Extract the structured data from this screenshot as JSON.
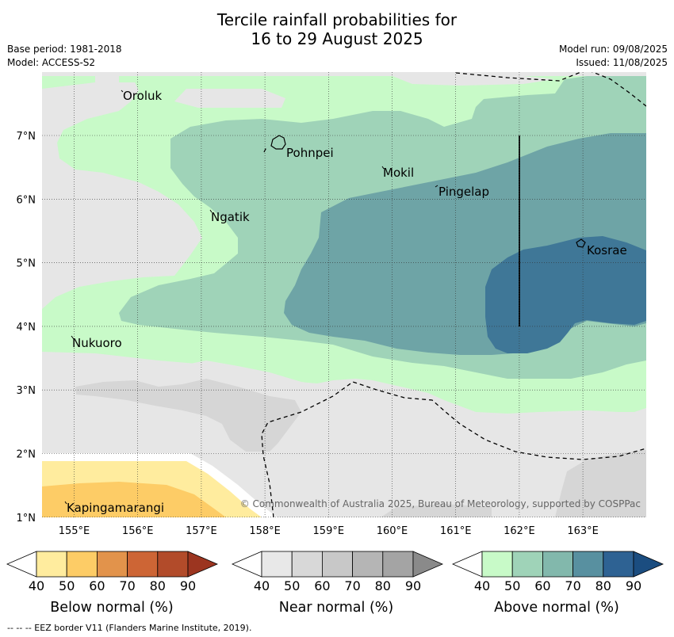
{
  "title_line1": "Tercile rainfall probabilities for",
  "title_line2": "16 to 29 August 2025",
  "base_period": "Base period: 1981-2018",
  "model": "Model: ACCESS-S2",
  "model_run": "Model run: 09/08/2025",
  "issued": "Issued: 11/08/2025",
  "copyright": "© Commonwealth of Australia 2025, Bureau of Meteorology, supported by COSPPac",
  "footnote": "-- -- -- EEZ border V11 (Flanders Marine Institute, 2019).",
  "places": {
    "oroluk": "Oroluk",
    "pohnpei": "Pohnpei",
    "mokil": "Mokil",
    "pingelap": "Pingelap",
    "ngatik": "Ngatik",
    "kosrae": "Kosrae",
    "nukuoro": "Nukuoro",
    "kapingamarangi": "Kapingamarangi"
  },
  "lat_ticks": [
    "7°N",
    "6°N",
    "5°N",
    "4°N",
    "3°N",
    "2°N",
    "1°N"
  ],
  "lon_ticks": [
    "155°E",
    "156°E",
    "157°E",
    "158°E",
    "159°E",
    "160°E",
    "161°E",
    "162°E",
    "163°E"
  ],
  "colorbars": {
    "below": {
      "title": "Below normal (%)",
      "labels": [
        "40",
        "50",
        "60",
        "70",
        "80",
        "90"
      ],
      "colors": [
        "#ffffff",
        "#ffec9e",
        "#fdcc66",
        "#e2934b",
        "#cd6535",
        "#b24b2a",
        "#9c3520"
      ]
    },
    "near": {
      "title": "Near normal (%)",
      "labels": [
        "40",
        "50",
        "60",
        "70",
        "80",
        "90"
      ],
      "colors": [
        "#ffffff",
        "#e8e8e8",
        "#d8d8d8",
        "#c8c8c8",
        "#b5b5b5",
        "#a4a4a4",
        "#8a8a8a"
      ]
    },
    "above": {
      "title": "Above normal (%)",
      "labels": [
        "40",
        "50",
        "60",
        "70",
        "80",
        "90"
      ],
      "colors": [
        "#ffffff",
        "#c8fac8",
        "#9fd3b8",
        "#82b8ac",
        "#5890a0",
        "#2e6293",
        "#1b4d80"
      ]
    }
  },
  "map_colors": {
    "above_50": "#c8fac8",
    "above_60": "#9fd3b8",
    "above_70": "#6ea4a6",
    "above_80": "#3f7797",
    "near_50": "#e6e6e6",
    "near_60": "#d6d6d6",
    "below_50": "#ffec9e",
    "below_60": "#fdcc66"
  }
}
